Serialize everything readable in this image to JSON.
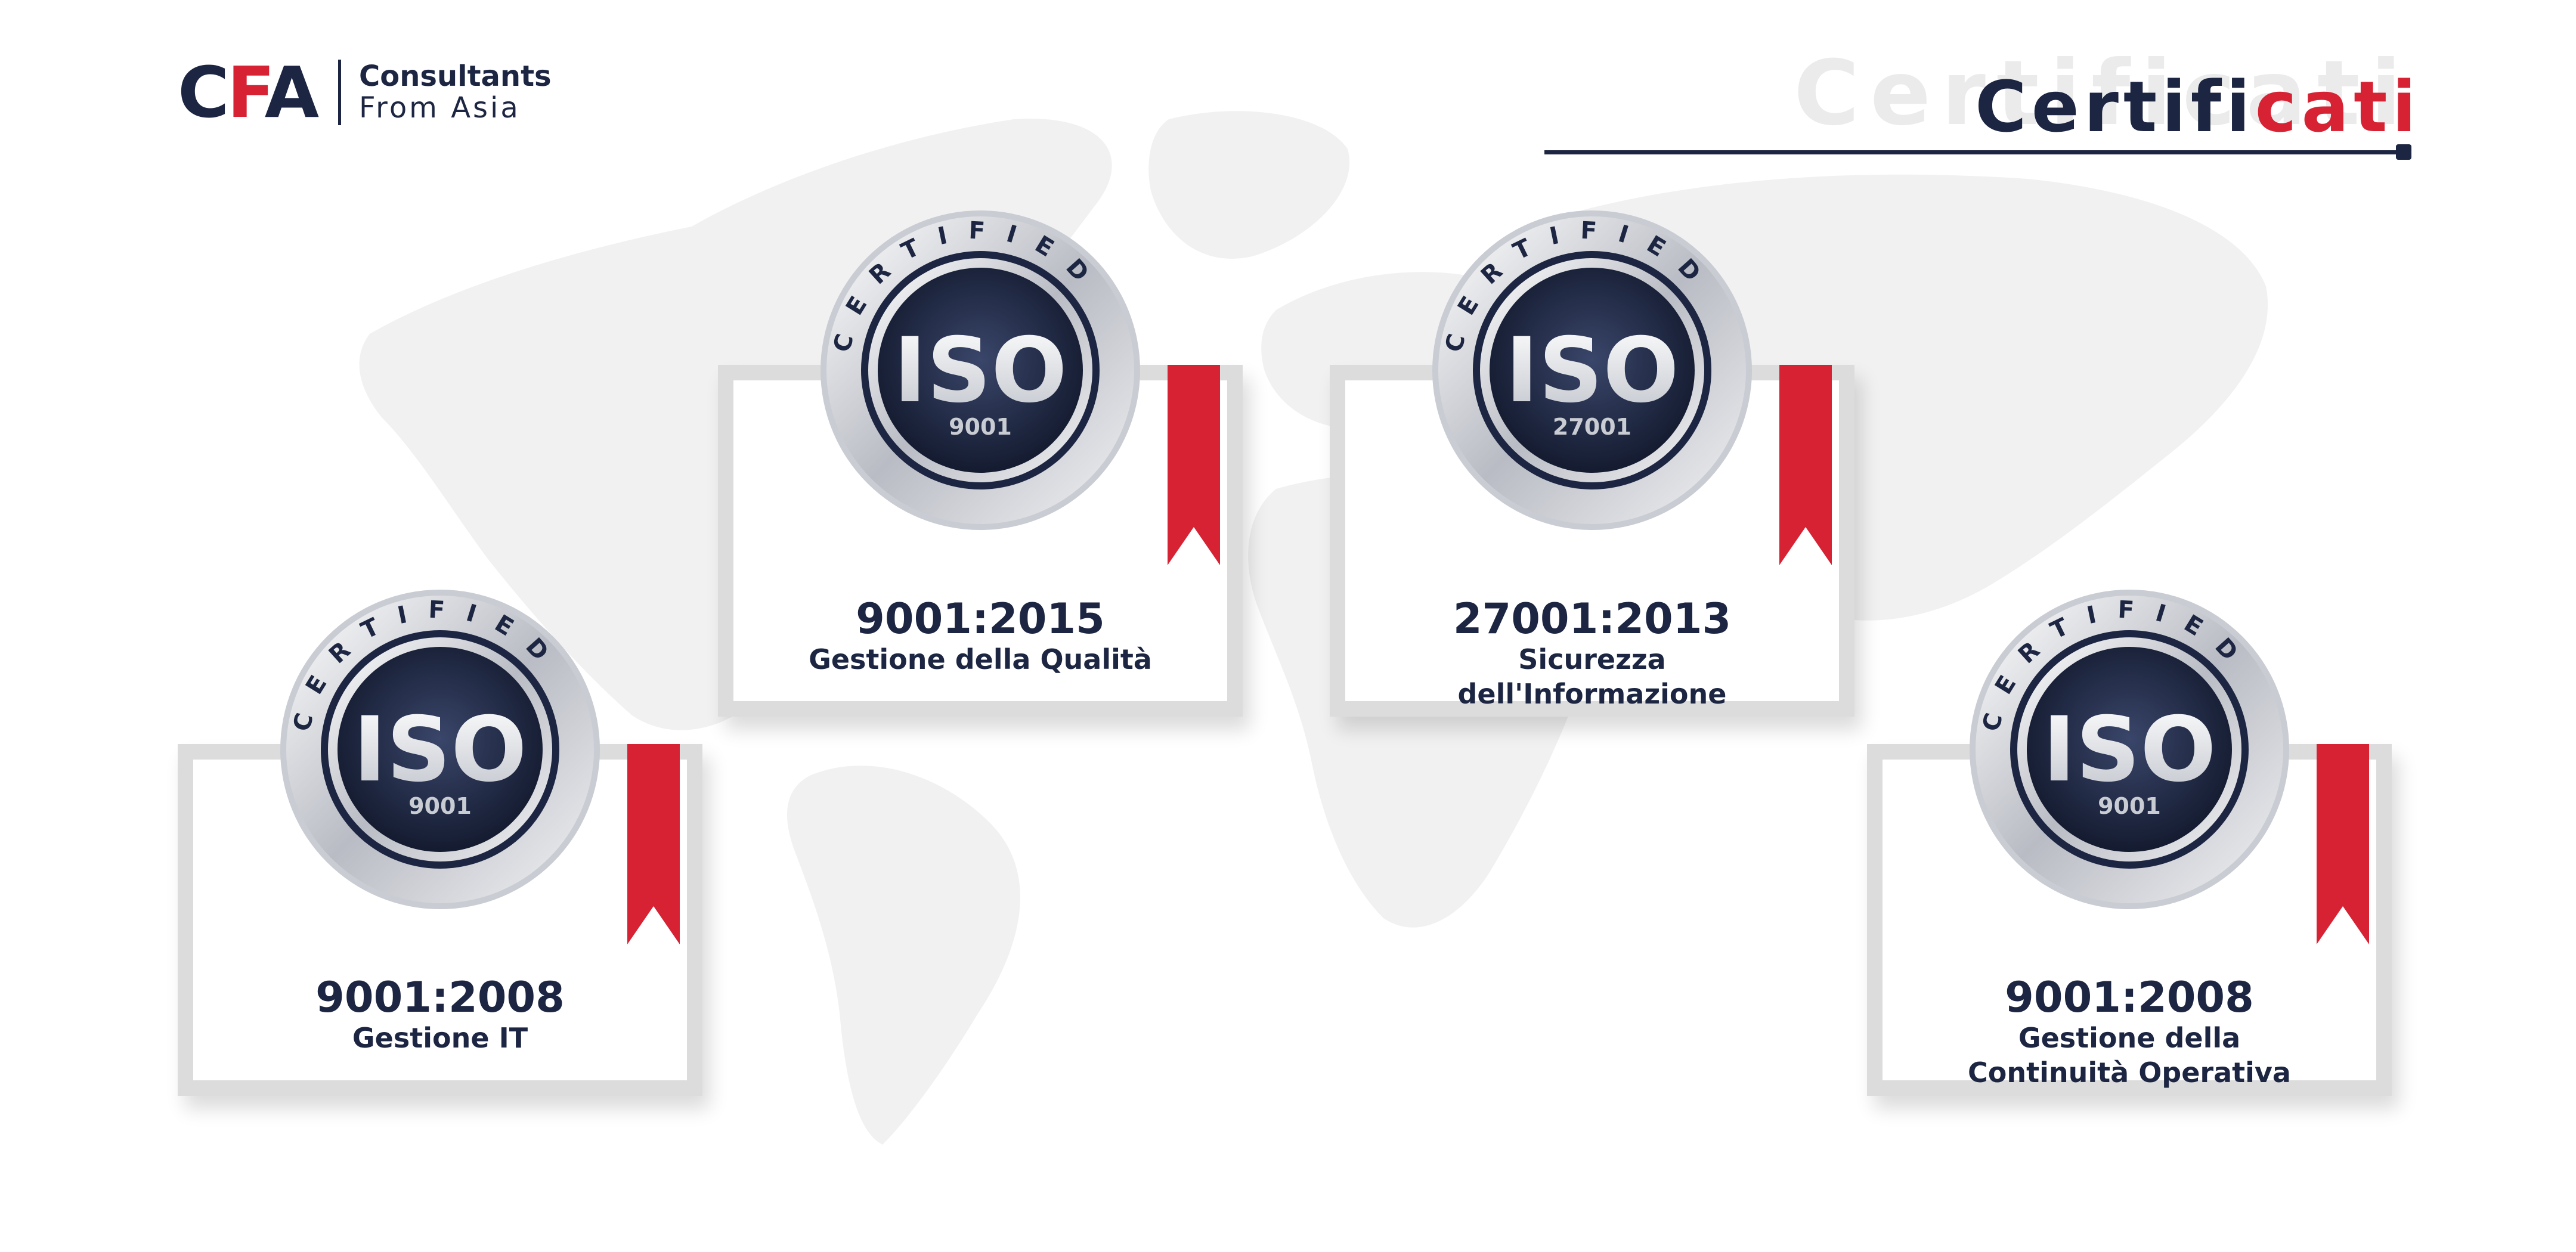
{
  "header": {
    "logo_prefix": "C",
    "logo_accent": "F",
    "logo_suffix": "A",
    "logo_line1": "Consultants",
    "logo_line2": "From Asia",
    "title_ghost": "Certificati",
    "title_dark": "Certifi",
    "title_red": "cati"
  },
  "seal": {
    "ring_text": "CERTIFIED",
    "badge_text": "ISO"
  },
  "certificates": [
    {
      "standard": "9001",
      "code": "9001:2008",
      "desc_line1": "Gestione IT",
      "desc_line2": ""
    },
    {
      "standard": "9001",
      "code": "9001:2015",
      "desc_line1": "Gestione della Qualità",
      "desc_line2": ""
    },
    {
      "standard": "27001",
      "code": "27001:2013",
      "desc_line1": "Sicurezza",
      "desc_line2": "dell'Informazione"
    },
    {
      "standard": "9001",
      "code": "9001:2008",
      "desc_line1": "Gestione della",
      "desc_line2": "Continuità Operativa"
    }
  ],
  "colors": {
    "navy": "#1c2541",
    "red": "#d62233",
    "frame": "#dcdcdc",
    "map": "#f0f0f0"
  }
}
